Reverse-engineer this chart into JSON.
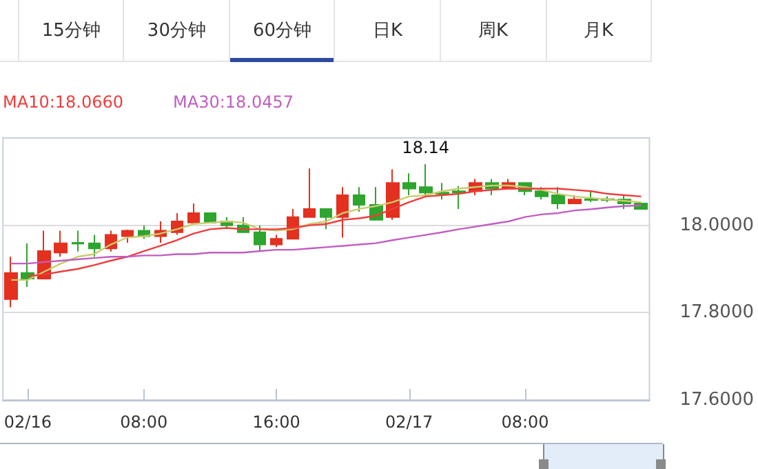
{
  "chart_data": {
    "type": "candlestick",
    "categories": [
      null,
      "02/16",
      null,
      null,
      null,
      null,
      null,
      null,
      "08:00",
      null,
      null,
      null,
      null,
      null,
      null,
      null,
      "16:00",
      null,
      null,
      null,
      null,
      null,
      null,
      null,
      "02/17",
      null,
      null,
      null,
      null,
      null,
      null,
      "08:00",
      null,
      null,
      null,
      null,
      null,
      null,
      null
    ],
    "ohlc": [
      [
        17.831,
        17.928,
        17.8125,
        17.891
      ],
      [
        17.891,
        17.959,
        17.859,
        17.878
      ],
      [
        17.878,
        17.9875,
        17.878,
        17.941
      ],
      [
        17.9375,
        17.9875,
        17.928,
        17.959
      ],
      [
        17.96,
        17.9875,
        17.94,
        17.958
      ],
      [
        17.959,
        17.978,
        17.928,
        17.947
      ],
      [
        17.947,
        17.9875,
        17.94,
        17.978
      ],
      [
        17.975,
        17.99,
        17.96,
        17.9875
      ],
      [
        17.9875,
        18.0,
        17.969,
        17.975
      ],
      [
        17.975,
        18.009,
        17.96,
        17.9875
      ],
      [
        17.984,
        18.028,
        17.978,
        18.009
      ],
      [
        18.006,
        18.05,
        18.006,
        18.028
      ],
      [
        18.028,
        18.028,
        18.006,
        18.006
      ],
      [
        18.009,
        18.019,
        17.991,
        18.0
      ],
      [
        18.0,
        18.019,
        17.984,
        17.984
      ],
      [
        17.984,
        18.0,
        17.94,
        17.956
      ],
      [
        17.956,
        17.978,
        17.95,
        17.969
      ],
      [
        17.969,
        18.0375,
        17.969,
        18.019
      ],
      [
        18.019,
        18.13,
        18.019,
        18.0375
      ],
      [
        18.0375,
        18.0375,
        17.991,
        18.019
      ],
      [
        18.019,
        18.0875,
        17.972,
        18.069
      ],
      [
        18.069,
        18.0875,
        18.031,
        18.047
      ],
      [
        18.047,
        18.0875,
        18.0125,
        18.0125
      ],
      [
        18.019,
        18.128,
        18.0125,
        18.097
      ],
      [
        18.097,
        18.119,
        18.069,
        18.084
      ],
      [
        18.0875,
        18.14,
        18.069,
        18.075
      ],
      [
        18.075,
        18.097,
        18.059,
        18.072
      ],
      [
        18.078,
        18.09,
        18.0375,
        18.075
      ],
      [
        18.078,
        18.106,
        18.069,
        18.097
      ],
      [
        18.097,
        18.106,
        18.069,
        18.084
      ],
      [
        18.084,
        18.106,
        18.084,
        18.097
      ],
      [
        18.097,
        18.097,
        18.069,
        18.078
      ],
      [
        18.078,
        18.0875,
        18.059,
        18.066
      ],
      [
        18.069,
        18.0875,
        18.0375,
        18.05
      ],
      [
        18.05,
        18.069,
        18.05,
        18.059
      ],
      [
        18.06,
        18.078,
        18.053,
        18.058
      ],
      [
        18.06,
        18.066,
        18.053,
        18.058
      ],
      [
        18.059,
        18.069,
        18.0375,
        18.05
      ],
      [
        18.05,
        18.05,
        18.0375,
        18.0375
      ]
    ],
    "colors": [
      "#e3301f",
      "#2ea52e",
      "#e3301f",
      "#e3301f",
      "#2ea52e",
      "#2ea52e",
      "#e3301f",
      "#e3301f",
      "#2ea52e",
      "#e3301f",
      "#e3301f",
      "#e3301f",
      "#2ea52e",
      "#2ea52e",
      "#2ea52e",
      "#2ea52e",
      "#e3301f",
      "#e3301f",
      "#e3301f",
      "#2ea52e",
      "#e3301f",
      "#2ea52e",
      "#2ea52e",
      "#e3301f",
      "#2ea52e",
      "#2ea52e",
      "#2ea52e",
      "#2ea52e",
      "#e3301f",
      "#2ea52e",
      "#e3301f",
      "#2ea52e",
      "#2ea52e",
      "#2ea52e",
      "#e3301f",
      "#2ea52e",
      "#2ea52e",
      "#2ea52e",
      "#2ea52e"
    ],
    "series": [
      {
        "type": "line",
        "color": "#c9cc6e",
        "values": [
          17.875,
          17.875,
          17.894,
          17.9125,
          17.928,
          17.934,
          17.956,
          17.972,
          17.975,
          17.981,
          17.991,
          18.003,
          18.006,
          18.009,
          18.006,
          17.991,
          17.988,
          17.991,
          18.003,
          18.009,
          18.028,
          18.0375,
          18.044,
          18.053,
          18.066,
          18.069,
          18.078,
          18.084,
          18.0875,
          18.091,
          18.091,
          18.0875,
          18.081,
          18.072,
          18.066,
          18.0625,
          18.059,
          18.056,
          18.053
        ]
      },
      {
        "type": "line",
        "name": "MA10:18.0660",
        "color": "#f03c3c",
        "values": [
          null,
          17.884,
          17.8875,
          17.894,
          17.9,
          17.909,
          17.919,
          17.928,
          17.941,
          17.953,
          17.966,
          17.981,
          17.991,
          17.994,
          17.991,
          17.991,
          17.991,
          17.994,
          18.0,
          18.003,
          18.0125,
          18.016,
          18.022,
          18.0375,
          18.053,
          18.066,
          18.069,
          18.072,
          18.078,
          18.081,
          18.084,
          18.084,
          18.084,
          18.084,
          18.081,
          18.078,
          18.072,
          18.069,
          18.066
        ]
      },
      {
        "type": "line",
        "name": "MA30:18.0457",
        "color": "#c05ec0",
        "values": [
          17.9125,
          17.9125,
          17.916,
          17.919,
          17.922,
          17.925,
          17.928,
          17.928,
          17.931,
          17.931,
          17.934,
          17.934,
          17.9375,
          17.9375,
          17.9375,
          17.941,
          17.944,
          17.944,
          17.947,
          17.95,
          17.953,
          17.956,
          17.959,
          17.966,
          17.972,
          17.978,
          17.984,
          17.991,
          17.997,
          18.003,
          18.009,
          18.019,
          18.025,
          18.028,
          18.034,
          18.037,
          18.041,
          18.044,
          18.0457
        ]
      }
    ],
    "ylim": [
      17.6,
      18.2
    ],
    "yticks": [
      {
        "value": 17.6,
        "label": "17.6000"
      },
      {
        "value": 17.8,
        "label": "17.8000"
      },
      {
        "value": 18,
        "label": "18.0000"
      }
    ],
    "grid": "y",
    "marker": "none",
    "legend": "top left",
    "annotations": [
      "15分钟",
      "30分钟",
      "60分钟",
      "日K",
      "周K",
      "月K",
      {
        "text": "18.14",
        "y": 18.14
      }
    ]
  }
}
